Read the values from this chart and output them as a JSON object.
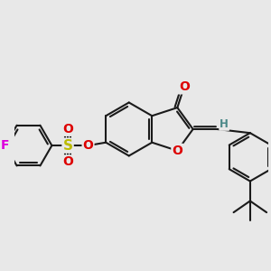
{
  "bg_color": "#e8e8e8",
  "bond_color": "#1a1a1a",
  "bond_width": 1.5,
  "atom_colors": {
    "O": "#dd0000",
    "F": "#dd00dd",
    "S": "#bbbb00",
    "H": "#4a8888",
    "C": "#1a1a1a"
  },
  "font_size_atom": 10,
  "font_size_small": 8.5
}
